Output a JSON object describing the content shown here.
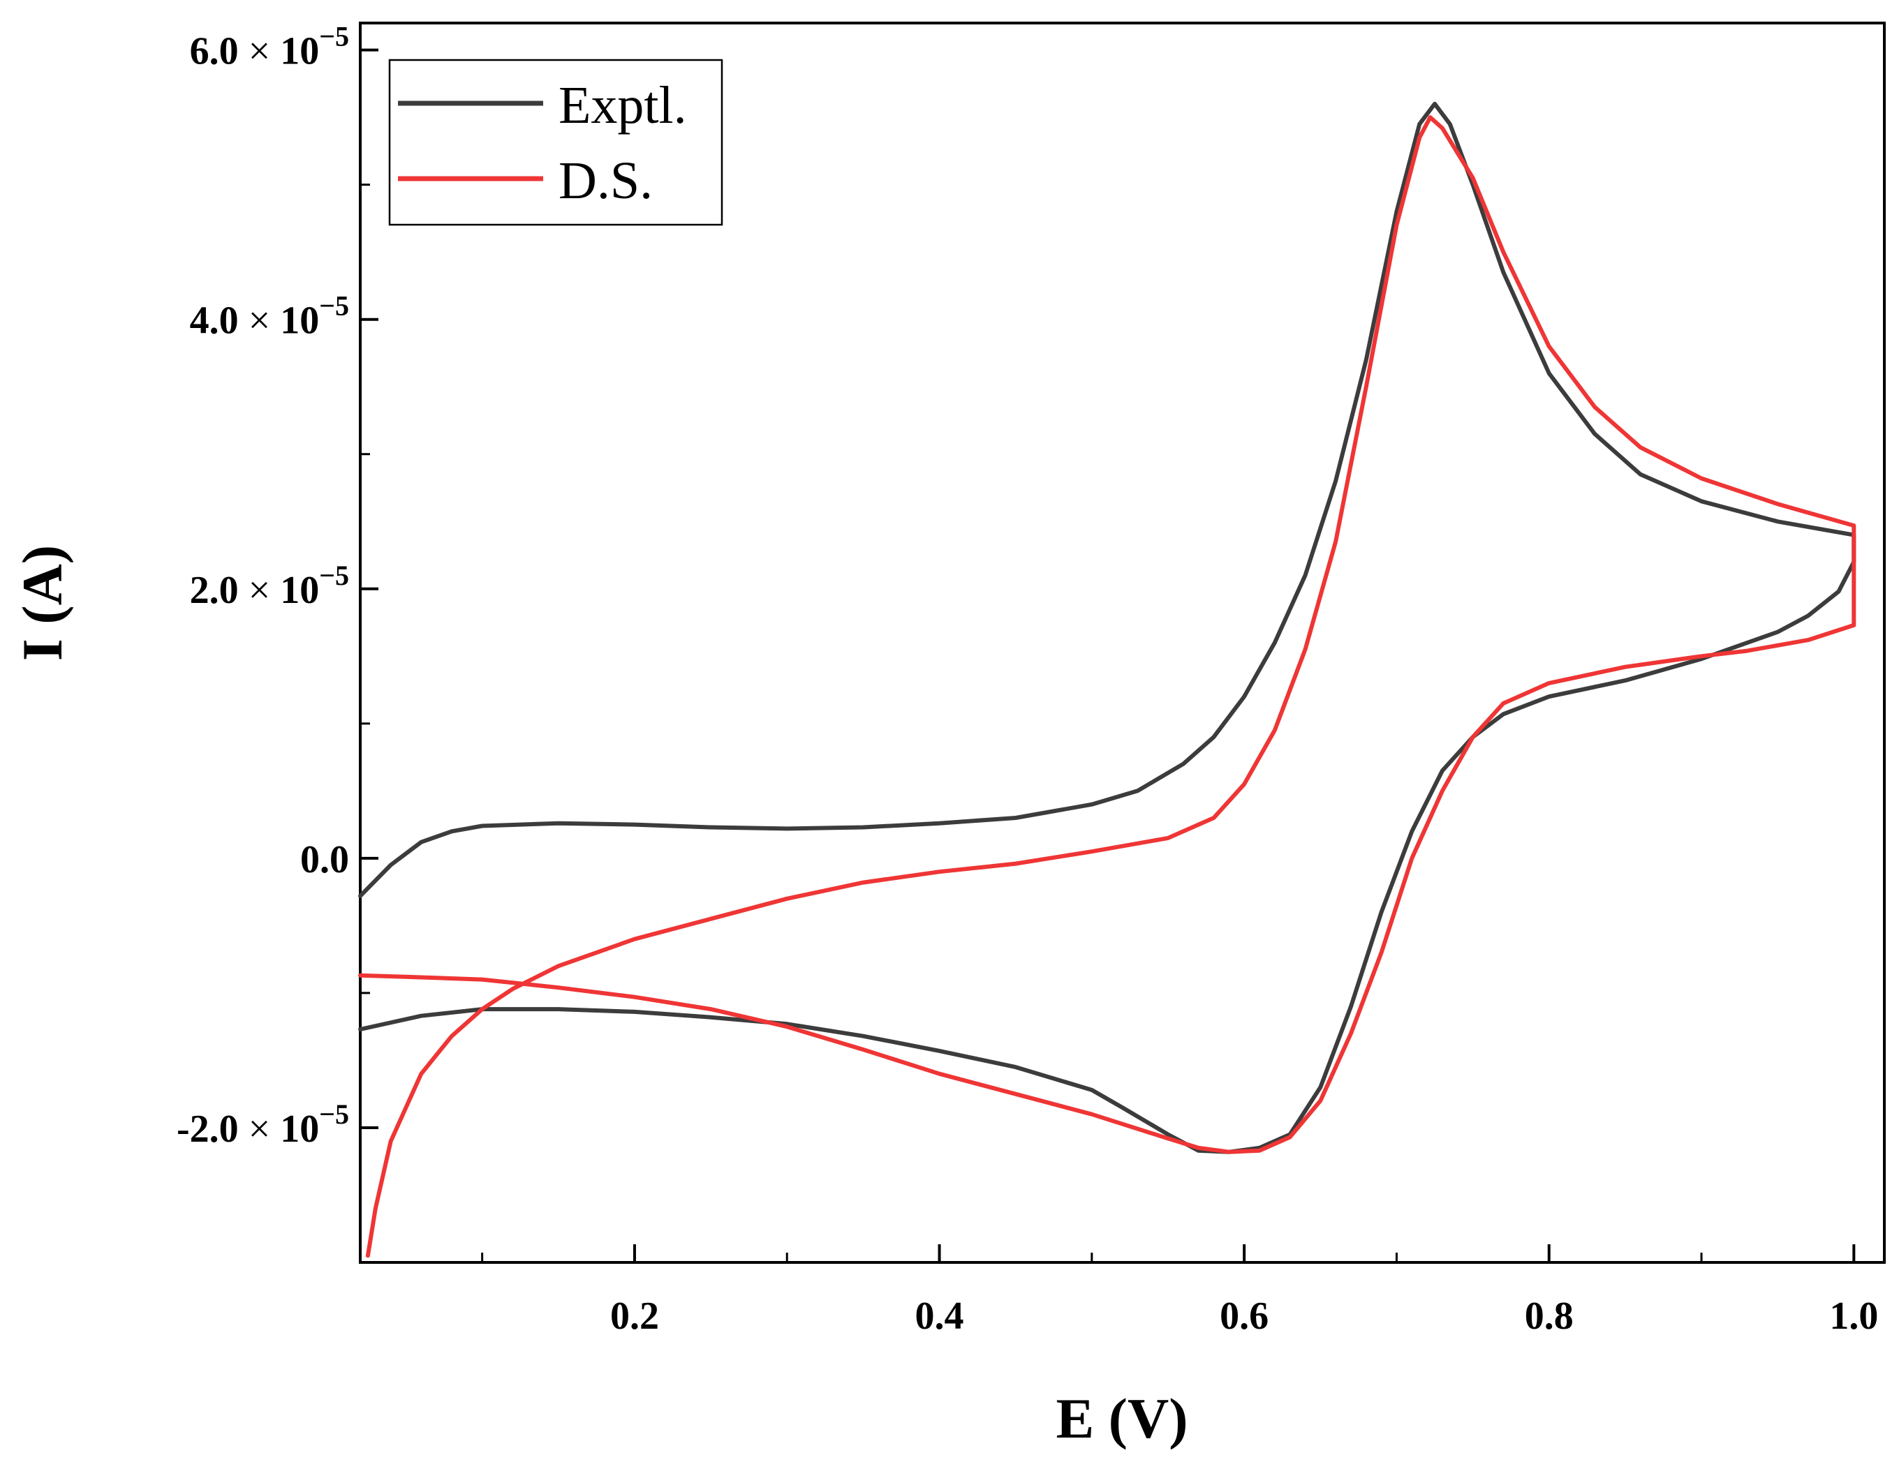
{
  "chart_data": {
    "type": "line",
    "title": "",
    "xlabel": "E (V)",
    "ylabel": "I (A)",
    "xlim": [
      0.02,
      1.02
    ],
    "ylim": [
      -3e-05,
      6.2e-05
    ],
    "grid": false,
    "legend_position": "top-left",
    "x_ticks": [
      {
        "value": 0.2,
        "label": "0.2"
      },
      {
        "value": 0.4,
        "label": "0.4"
      },
      {
        "value": 0.6,
        "label": "0.6"
      },
      {
        "value": 0.8,
        "label": "0.8"
      },
      {
        "value": 1.0,
        "label": "1.0"
      }
    ],
    "x_minor_ticks": [
      0.1,
      0.3,
      0.5,
      0.7,
      0.9
    ],
    "y_ticks": [
      {
        "value": 6e-05,
        "mantissa": "6.0",
        "times": "×",
        "base": "10",
        "exponent": "−5"
      },
      {
        "value": 4e-05,
        "mantissa": "4.0",
        "times": "×",
        "base": "10",
        "exponent": "−5"
      },
      {
        "value": 2e-05,
        "mantissa": "2.0",
        "times": "×",
        "base": "10",
        "exponent": "−5"
      },
      {
        "value": 0.0,
        "mantissa": "0.0",
        "times": "",
        "base": "",
        "exponent": ""
      },
      {
        "value": -2e-05,
        "mantissa": "-2.0",
        "times": "×",
        "base": "10",
        "exponent": "−5"
      }
    ],
    "y_minor_ticks": [
      5e-05,
      3e-05,
      1e-05,
      -1e-05
    ],
    "series": [
      {
        "name": "Exptl.",
        "color": "#3c3c3c",
        "points": [
          [
            0.02,
            -2.8e-06
          ],
          [
            0.04,
            -5e-07
          ],
          [
            0.06,
            1.2e-06
          ],
          [
            0.08,
            2e-06
          ],
          [
            0.1,
            2.4e-06
          ],
          [
            0.15,
            2.6e-06
          ],
          [
            0.2,
            2.5e-06
          ],
          [
            0.25,
            2.3e-06
          ],
          [
            0.3,
            2.2e-06
          ],
          [
            0.35,
            2.3e-06
          ],
          [
            0.4,
            2.6e-06
          ],
          [
            0.45,
            3e-06
          ],
          [
            0.5,
            4e-06
          ],
          [
            0.53,
            5e-06
          ],
          [
            0.56,
            7e-06
          ],
          [
            0.58,
            9e-06
          ],
          [
            0.6,
            1.2e-05
          ],
          [
            0.62,
            1.6e-05
          ],
          [
            0.64,
            2.1e-05
          ],
          [
            0.66,
            2.8e-05
          ],
          [
            0.68,
            3.7e-05
          ],
          [
            0.7,
            4.8e-05
          ],
          [
            0.715,
            5.45e-05
          ],
          [
            0.725,
            5.6e-05
          ],
          [
            0.735,
            5.45e-05
          ],
          [
            0.75,
            5e-05
          ],
          [
            0.77,
            4.35e-05
          ],
          [
            0.8,
            3.6e-05
          ],
          [
            0.83,
            3.15e-05
          ],
          [
            0.86,
            2.85e-05
          ],
          [
            0.9,
            2.65e-05
          ],
          [
            0.95,
            2.5e-05
          ],
          [
            1.0,
            2.4e-05
          ],
          [
            1.0,
            2.2e-05
          ],
          [
            0.99,
            1.98e-05
          ],
          [
            0.97,
            1.8e-05
          ],
          [
            0.95,
            1.68e-05
          ],
          [
            0.9,
            1.48e-05
          ],
          [
            0.85,
            1.32e-05
          ],
          [
            0.8,
            1.2e-05
          ],
          [
            0.77,
            1.07e-05
          ],
          [
            0.75,
            9e-06
          ],
          [
            0.73,
            6.5e-06
          ],
          [
            0.71,
            2e-06
          ],
          [
            0.69,
            -4e-06
          ],
          [
            0.67,
            -1.1e-05
          ],
          [
            0.65,
            -1.7e-05
          ],
          [
            0.63,
            -2.05e-05
          ],
          [
            0.61,
            -2.15e-05
          ],
          [
            0.59,
            -2.18e-05
          ],
          [
            0.57,
            -2.17e-05
          ],
          [
            0.55,
            -2.05e-05
          ],
          [
            0.52,
            -1.85e-05
          ],
          [
            0.5,
            -1.72e-05
          ],
          [
            0.45,
            -1.55e-05
          ],
          [
            0.4,
            -1.43e-05
          ],
          [
            0.35,
            -1.32e-05
          ],
          [
            0.3,
            -1.23e-05
          ],
          [
            0.25,
            -1.18e-05
          ],
          [
            0.2,
            -1.14e-05
          ],
          [
            0.15,
            -1.12e-05
          ],
          [
            0.1,
            -1.12e-05
          ],
          [
            0.06,
            -1.17e-05
          ],
          [
            0.02,
            -1.27e-05
          ]
        ]
      },
      {
        "name": "D.S.",
        "color": "#ef3535",
        "points": [
          [
            0.025,
            -2.95e-05
          ],
          [
            0.03,
            -2.6e-05
          ],
          [
            0.04,
            -2.1e-05
          ],
          [
            0.06,
            -1.6e-05
          ],
          [
            0.08,
            -1.32e-05
          ],
          [
            0.1,
            -1.12e-05
          ],
          [
            0.12,
            -9.7e-06
          ],
          [
            0.15,
            -8e-06
          ],
          [
            0.2,
            -6e-06
          ],
          [
            0.25,
            -4.5e-06
          ],
          [
            0.3,
            -3e-06
          ],
          [
            0.35,
            -1.8e-06
          ],
          [
            0.4,
            -1e-06
          ],
          [
            0.45,
            -4e-07
          ],
          [
            0.5,
            5e-07
          ],
          [
            0.55,
            1.5e-06
          ],
          [
            0.58,
            3e-06
          ],
          [
            0.6,
            5.5e-06
          ],
          [
            0.62,
            9.5e-06
          ],
          [
            0.64,
            1.55e-05
          ],
          [
            0.66,
            2.35e-05
          ],
          [
            0.68,
            3.5e-05
          ],
          [
            0.7,
            4.7e-05
          ],
          [
            0.715,
            5.35e-05
          ],
          [
            0.722,
            5.5e-05
          ],
          [
            0.73,
            5.42e-05
          ],
          [
            0.75,
            5.05e-05
          ],
          [
            0.77,
            4.5e-05
          ],
          [
            0.8,
            3.8e-05
          ],
          [
            0.83,
            3.35e-05
          ],
          [
            0.86,
            3.05e-05
          ],
          [
            0.9,
            2.82e-05
          ],
          [
            0.95,
            2.63e-05
          ],
          [
            1.0,
            2.47e-05
          ],
          [
            1.0,
            1.73e-05
          ],
          [
            0.97,
            1.62e-05
          ],
          [
            0.93,
            1.54e-05
          ],
          [
            0.9,
            1.5e-05
          ],
          [
            0.85,
            1.42e-05
          ],
          [
            0.8,
            1.3e-05
          ],
          [
            0.77,
            1.15e-05
          ],
          [
            0.75,
            9e-06
          ],
          [
            0.73,
            5e-06
          ],
          [
            0.71,
            0.0
          ],
          [
            0.69,
            -7e-06
          ],
          [
            0.67,
            -1.3e-05
          ],
          [
            0.65,
            -1.8e-05
          ],
          [
            0.63,
            -2.07e-05
          ],
          [
            0.61,
            -2.17e-05
          ],
          [
            0.59,
            -2.18e-05
          ],
          [
            0.57,
            -2.15e-05
          ],
          [
            0.55,
            -2.08e-05
          ],
          [
            0.5,
            -1.9e-05
          ],
          [
            0.45,
            -1.75e-05
          ],
          [
            0.4,
            -1.6e-05
          ],
          [
            0.35,
            -1.42e-05
          ],
          [
            0.3,
            -1.25e-05
          ],
          [
            0.25,
            -1.12e-05
          ],
          [
            0.2,
            -1.03e-05
          ],
          [
            0.15,
            -9.6e-06
          ],
          [
            0.1,
            -9e-06
          ],
          [
            0.05,
            -8.8e-06
          ],
          [
            0.02,
            -8.7e-06
          ]
        ]
      }
    ]
  }
}
